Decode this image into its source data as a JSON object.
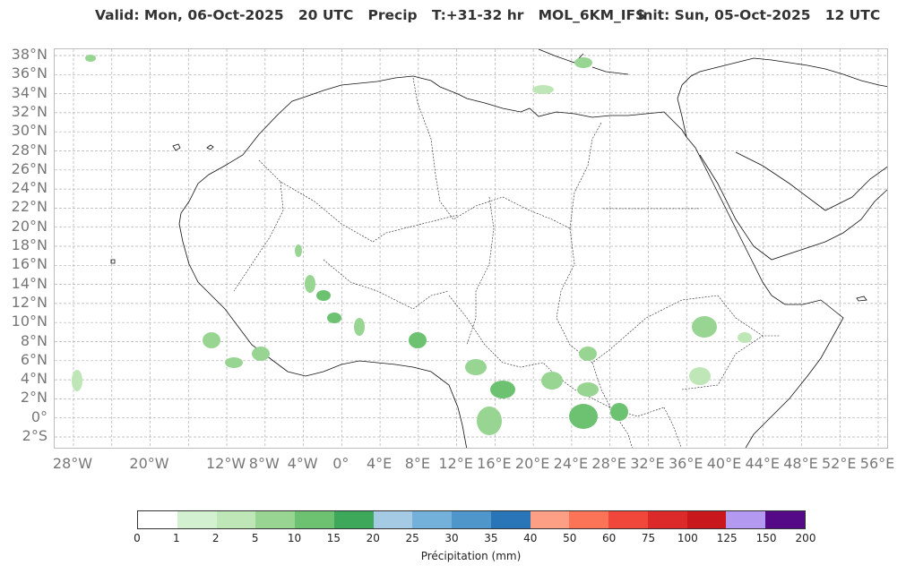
{
  "title": {
    "valid": "Valid: Mon, 06-Oct-2025   20 UTC   Precip   T:+31-32 hr   MOL_6KM_IFS",
    "init": "init: Sun, 05-Oct-2025   12 UTC"
  },
  "map": {
    "lat_labels": [
      "38°N",
      "36°N",
      "34°N",
      "32°N",
      "30°N",
      "28°N",
      "26°N",
      "24°N",
      "22°N",
      "20°N",
      "18°N",
      "16°N",
      "14°N",
      "12°N",
      "10°N",
      "8°N",
      "6°N",
      "4°N",
      "2°N",
      "0°",
      "2°S"
    ],
    "lon_labels": [
      "28°W",
      "20°W",
      "12°W",
      "8°W",
      "4°W",
      "0°",
      "4°E",
      "8°E",
      "12°E",
      "16°E",
      "20°E",
      "24°E",
      "28°E",
      "32°E",
      "36°E",
      "40°E",
      "44°E",
      "48°E",
      "52°E",
      "56°E"
    ],
    "land_color": "#ffffff",
    "coast_color": "#111111",
    "grid_color": "#b0b0b0"
  },
  "colorbar": {
    "label": "Précipitation (mm)",
    "ticks": [
      "0",
      "1",
      "2",
      "5",
      "10",
      "15",
      "20",
      "25",
      "30",
      "35",
      "40",
      "50",
      "60",
      "75",
      "100",
      "125",
      "150",
      "200"
    ],
    "colors": [
      "#ffffff",
      "#d3f0d0",
      "#bfe6b7",
      "#98d592",
      "#6cc270",
      "#3ea85a",
      "#a4cbe3",
      "#74b1da",
      "#4f97cb",
      "#2a74b8",
      "#fc9f85",
      "#fb7458",
      "#f0473a",
      "#dc2a2a",
      "#c9181d",
      "#b399f0",
      "#540a86"
    ]
  }
}
